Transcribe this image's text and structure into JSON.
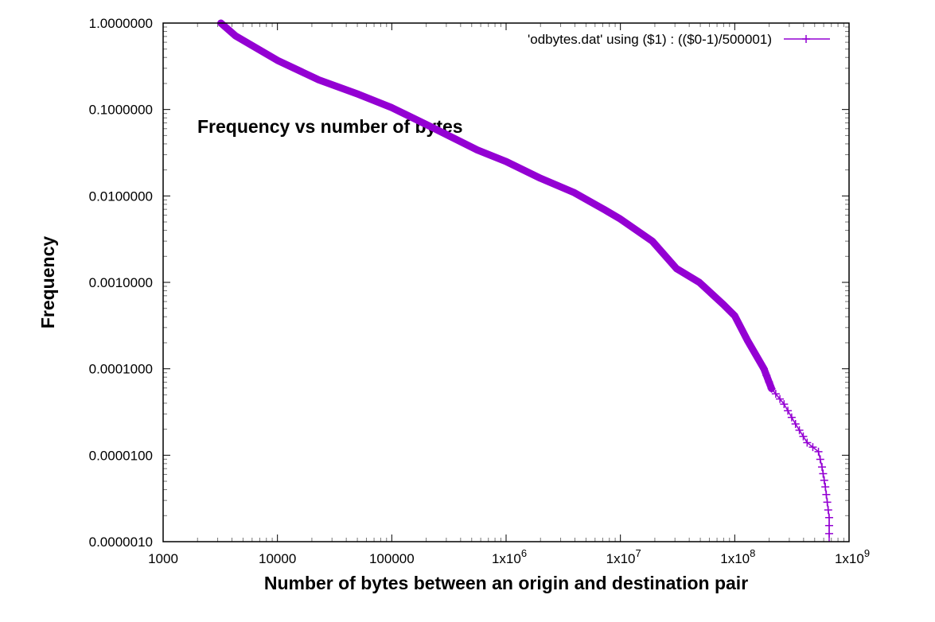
{
  "chart_data": {
    "type": "line",
    "title": "Frequency vs number of bytes",
    "xlabel": "Number of bytes between an origin and destination pair",
    "ylabel": "Frequency",
    "x_scale": "log",
    "y_scale": "log",
    "xlim": [
      1000,
      1000000000
    ],
    "ylim": [
      1e-06,
      1.0
    ],
    "grid": false,
    "legend_position": "top-right",
    "x_ticks": [
      1000,
      10000,
      100000,
      1000000,
      10000000,
      100000000,
      1000000000
    ],
    "x_tick_labels": [
      "1000",
      "10000",
      "100000",
      "1x10^6",
      "1x10^7",
      "1x10^8",
      "1x10^9"
    ],
    "y_ticks": [
      1.0,
      0.1,
      0.01,
      0.001,
      0.0001,
      1e-05,
      1e-06
    ],
    "y_tick_labels": [
      "1.0000000",
      "0.1000000",
      "0.0100000",
      "0.0010000",
      "0.0001000",
      "0.0000100",
      "0.0000010"
    ],
    "series": [
      {
        "name": "'odbytes.dat' using ($1) : (($0-1)/500001)",
        "color": "#9400d3",
        "marker": "+",
        "x": [
          3200,
          4300,
          10000,
          23000,
          51000,
          100000,
          215000,
          560000,
          1000000,
          2000000,
          3900000,
          7300000,
          10000000,
          19000000,
          31000000,
          49000000,
          80000000,
          100000000,
          130000000,
          180000000,
          210000000,
          270000000,
          340000000,
          430000000,
          540000000,
          580000000,
          620000000,
          670000000,
          670000000
        ],
        "y": [
          1.0,
          0.71,
          0.37,
          0.22,
          0.15,
          0.105,
          0.064,
          0.034,
          0.025,
          0.016,
          0.011,
          0.0069,
          0.0054,
          0.003,
          0.00144,
          0.001,
          0.00055,
          0.00041,
          0.00021,
          0.0001,
          5.9e-05,
          3.9e-05,
          2.3e-05,
          1.4e-05,
          1.1e-05,
          7.3e-06,
          4.3e-06,
          1.9e-06,
          1e-06
        ]
      }
    ]
  },
  "legend": {
    "label": "'odbytes.dat' using ($1) : (($0-1)/500001)"
  },
  "colors": {
    "series": "#9400d3",
    "axis": "#000000",
    "background": "#ffffff"
  }
}
